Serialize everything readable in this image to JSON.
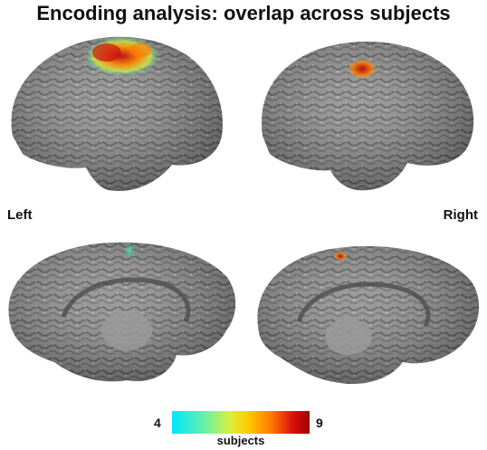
{
  "title": "Encoding analysis: overlap across subjects",
  "hemisphere_labels": {
    "left": "Left",
    "right": "Right"
  },
  "colorbar": {
    "min": "4",
    "max": "9",
    "label": "subjects",
    "colors": [
      "#00e5ff",
      "#5ff0b0",
      "#d8f040",
      "#ffcc00",
      "#ff7a00",
      "#d81010",
      "#a00000"
    ]
  }
}
